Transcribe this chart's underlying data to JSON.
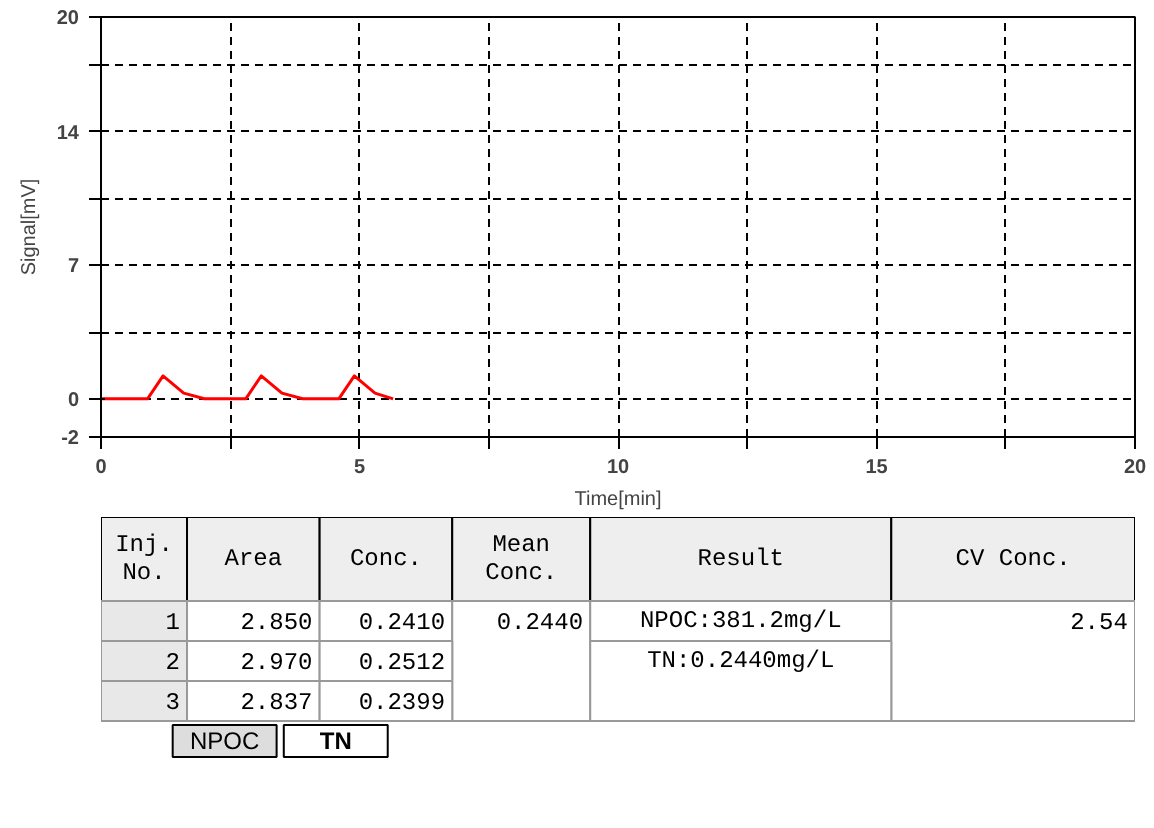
{
  "chart_data": [
    {
      "type": "line",
      "xlabel": "Time[min]",
      "ylabel": "Signal[mV]",
      "xlim": [
        0,
        20
      ],
      "ylim": [
        -2,
        20
      ],
      "xticks": [
        0,
        {
          "value": 2.5,
          "label": null
        },
        5,
        {
          "value": 7.5,
          "label": null
        },
        10,
        {
          "value": 12.5,
          "label": null
        },
        15,
        {
          "value": 17.5,
          "label": null
        },
        20
      ],
      "yticks": [
        -2,
        0,
        {
          "value": 3.5,
          "label": null
        },
        7,
        {
          "value": 10.5,
          "label": null
        },
        14,
        {
          "value": 17.5,
          "label": null
        },
        20
      ],
      "grid": true,
      "line_style": "solid",
      "series": [
        {
          "color": "#ff0000",
          "x": [
            0,
            0.9,
            1.2,
            1.6,
            2.0,
            2.8,
            3.1,
            3.5,
            3.9,
            4.6,
            4.9,
            5.3,
            5.65
          ],
          "values": [
            0,
            0,
            1.2,
            0.3,
            0,
            0,
            1.2,
            0.3,
            0,
            0,
            1.2,
            0.3,
            0
          ]
        }
      ]
    },
    {
      "type": "other",
      "categories": [
        "Inj.\nNo.",
        "Area",
        "Conc.",
        "Mean\nConc.",
        "Result",
        "CV Conc."
      ],
      "cell_labels": [
        [
          "1",
          "2.850",
          "0.2410",
          "0.2440",
          "NPOC:381.2mg/L",
          "2.54"
        ],
        [
          "2",
          "2.970",
          "0.2512",
          null,
          "TN:0.2440mg/L",
          null
        ],
        [
          "3",
          "2.837",
          "0.2399",
          null,
          null,
          null
        ]
      ],
      "annotations": [
        "NPOC",
        "TN"
      ]
    }
  ]
}
